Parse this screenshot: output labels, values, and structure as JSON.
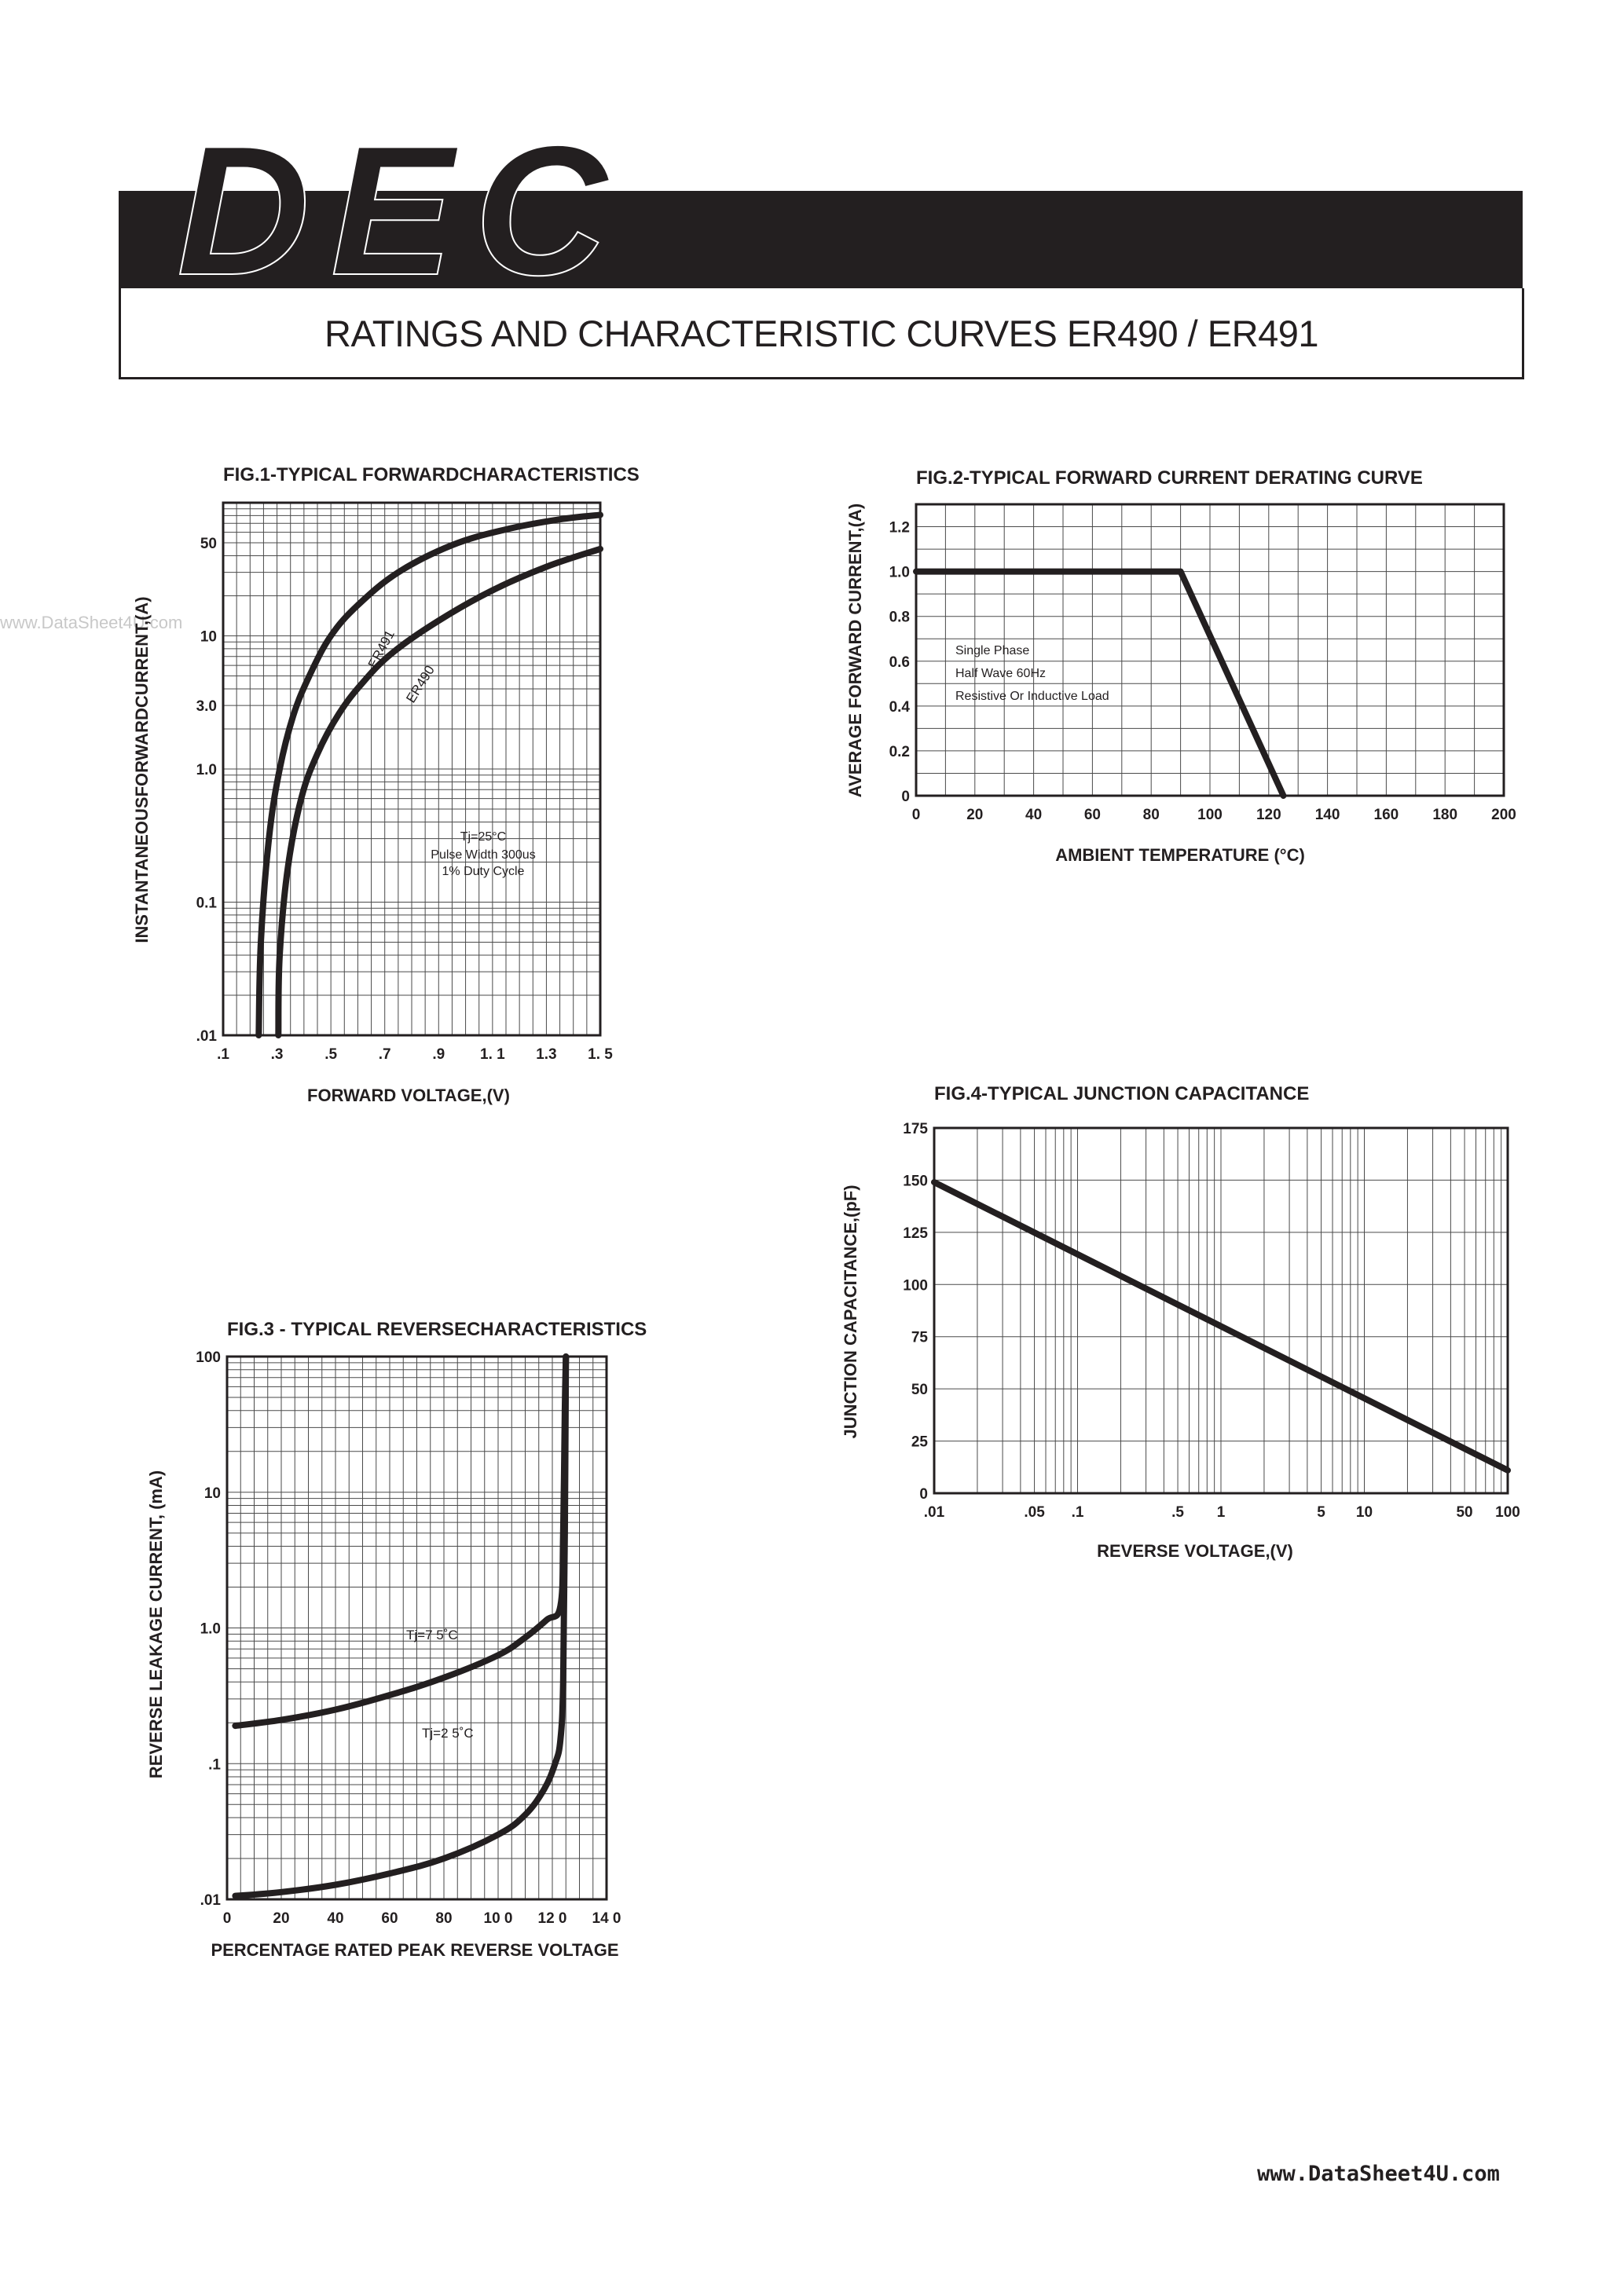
{
  "header": {
    "logo": "DEC",
    "title": "RATINGS AND CHARACTERISTIC CURVES ER490 / ER491"
  },
  "watermark": "www.DataSheet4U.com",
  "footer": {
    "url": "www.DataSheet4U.com"
  },
  "chart_data": [
    {
      "id": "fig1",
      "type": "line",
      "title": "FIG.1-TYPICAL FORWARDCHARACTERISTICS",
      "xlabel": "FORWARD VOLTAGE,(V)",
      "ylabel": "INSTANTANEOUSFORWARDCURRENT,(A)",
      "xscale": "linear",
      "yscale": "log",
      "xlim": [
        0.1,
        1.5
      ],
      "ylim": [
        0.01,
        100
      ],
      "xticks": [
        0.1,
        0.3,
        0.5,
        0.7,
        0.9,
        1.1,
        1.3,
        1.5
      ],
      "xtick_labels": [
        ".1",
        ".3",
        ".5",
        ".7",
        ".9",
        "1. 1",
        "1.3",
        "1. 5"
      ],
      "yticks": [
        0.01,
        0.1,
        1.0,
        3.0,
        10,
        50
      ],
      "ytick_labels": [
        ".01",
        "0.1",
        "1.0",
        "3.0",
        "10",
        "50"
      ],
      "grid": true,
      "annotations": [
        "Tj=25°C",
        "Pulse Width 300us",
        "1% Duty Cycle"
      ],
      "series": [
        {
          "name": "ER491",
          "x": [
            0.232,
            0.24,
            0.27,
            0.31,
            0.36,
            0.42,
            0.5,
            0.6,
            0.75,
            0.95,
            1.15,
            1.35,
            1.5
          ],
          "y": [
            0.01,
            0.05,
            0.3,
            1.0,
            2.5,
            5.0,
            10,
            17,
            30,
            48,
            63,
            75,
            81
          ]
        },
        {
          "name": "ER490",
          "x": [
            0.305,
            0.31,
            0.34,
            0.39,
            0.45,
            0.53,
            0.62,
            0.73,
            0.9,
            1.1,
            1.3,
            1.5
          ],
          "y": [
            0.01,
            0.04,
            0.18,
            0.6,
            1.3,
            2.6,
            4.5,
            7.5,
            13,
            22,
            33,
            45
          ]
        }
      ]
    },
    {
      "id": "fig2",
      "type": "line",
      "title": "FIG.2-TYPICAL FORWARD CURRENT DERATING CURVE",
      "xlabel": "AMBIENT TEMPERATURE (°C)",
      "ylabel": "AVERAGE FORWARD CURRENT,(A)",
      "xscale": "linear",
      "yscale": "linear",
      "xlim": [
        0,
        200
      ],
      "ylim": [
        0,
        1.3
      ],
      "xticks": [
        0,
        20,
        40,
        60,
        80,
        100,
        120,
        140,
        160,
        180,
        200
      ],
      "xtick_labels": [
        "0",
        "20",
        "40",
        "60",
        "80",
        "100",
        "120",
        "140",
        "160",
        "180",
        "200"
      ],
      "yticks": [
        0,
        0.2,
        0.4,
        0.6,
        0.8,
        1.0,
        1.2
      ],
      "ytick_labels": [
        "0",
        "0.2",
        "0.4",
        "0.6",
        "0.8",
        "1.0",
        "1.2"
      ],
      "grid": true,
      "annotations": [
        "Single Phase",
        "Half Wave 60Hz",
        "Resistive Or Inductive Load"
      ],
      "series": [
        {
          "name": "",
          "x": [
            0,
            35,
            90,
            125
          ],
          "y": [
            1.0,
            1.0,
            1.0,
            0
          ]
        }
      ]
    },
    {
      "id": "fig3",
      "type": "line",
      "title": "FIG.3 - TYPICAL REVERSECHARACTERISTICS",
      "xlabel": "PERCENTAGE RATED PEAK REVERSE VOLTAGE",
      "ylabel": "REVERSE LEAKAGE CURRENT, (mA)",
      "xscale": "linear",
      "yscale": "log",
      "xlim": [
        0,
        140
      ],
      "ylim": [
        0.01,
        100
      ],
      "xticks": [
        0,
        20,
        40,
        60,
        80,
        100,
        120,
        140
      ],
      "xtick_labels": [
        "0",
        "20",
        "40",
        "60",
        "80",
        "10 0",
        "12 0",
        "14 0"
      ],
      "yticks": [
        0.01,
        0.1,
        1.0,
        10,
        100
      ],
      "ytick_labels": [
        ".01",
        ".1",
        "1.0",
        "10",
        "100"
      ],
      "grid": true,
      "series": [
        {
          "name": "Tj=7 5˚C",
          "x": [
            3,
            20,
            40,
            60,
            80,
            100,
            110,
            118,
            123,
            124,
            124.6,
            125
          ],
          "y": [
            0.19,
            0.21,
            0.25,
            0.32,
            0.43,
            0.63,
            0.85,
            1.15,
            1.45,
            5,
            40,
            100
          ]
        },
        {
          "name": "Tj=2 5˚C",
          "x": [
            3,
            20,
            40,
            60,
            80,
            100,
            110,
            117,
            121,
            123,
            124,
            124.6,
            125
          ],
          "y": [
            0.0106,
            0.0113,
            0.0128,
            0.0155,
            0.02,
            0.03,
            0.042,
            0.065,
            0.1,
            0.15,
            0.4,
            5,
            100
          ]
        }
      ]
    },
    {
      "id": "fig4",
      "type": "line",
      "title": "FIG.4-TYPICAL JUNCTION CAPACITANCE",
      "xlabel": "REVERSE VOLTAGE,(V)",
      "ylabel": "JUNCTION CAPACITANCE,(pF)",
      "xscale": "log",
      "yscale": "linear",
      "xlim": [
        0.01,
        100
      ],
      "ylim": [
        0,
        175
      ],
      "xticks": [
        0.01,
        0.05,
        0.1,
        0.5,
        1,
        5,
        10,
        50,
        100
      ],
      "xtick_labels": [
        ".01",
        ".05",
        ".1",
        ".5",
        "1",
        "5",
        "10",
        "50",
        "100"
      ],
      "yticks": [
        0,
        25,
        50,
        75,
        100,
        125,
        150,
        175
      ],
      "ytick_labels": [
        "0",
        "25",
        "50",
        "75",
        "100",
        "125",
        "150",
        "175"
      ],
      "grid": true,
      "series": [
        {
          "name": "",
          "x": [
            0.01,
            100
          ],
          "y": [
            149,
            11
          ]
        }
      ]
    }
  ]
}
